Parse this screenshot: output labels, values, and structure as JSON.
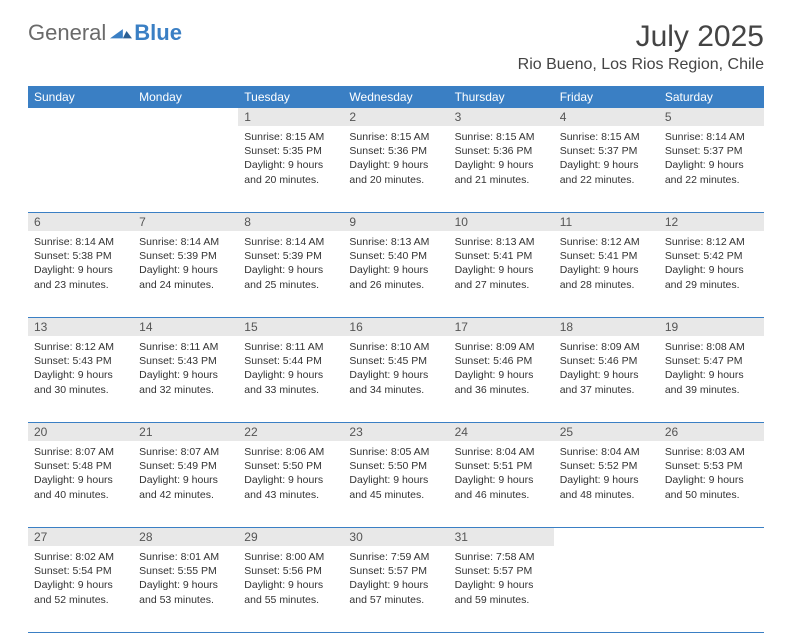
{
  "brand": {
    "part1": "General",
    "part2": "Blue"
  },
  "title": "July 2025",
  "location": "Rio Bueno, Los Rios Region, Chile",
  "colors": {
    "header_bg": "#3a7fc4",
    "daynum_bg": "#e8e8e8",
    "text": "#333333",
    "border": "#3a7fc4"
  },
  "day_names": [
    "Sunday",
    "Monday",
    "Tuesday",
    "Wednesday",
    "Thursday",
    "Friday",
    "Saturday"
  ],
  "weeks": [
    [
      {
        "n": "",
        "sr": "",
        "ss": "",
        "dl": ""
      },
      {
        "n": "",
        "sr": "",
        "ss": "",
        "dl": ""
      },
      {
        "n": "1",
        "sr": "Sunrise: 8:15 AM",
        "ss": "Sunset: 5:35 PM",
        "dl": "Daylight: 9 hours and 20 minutes."
      },
      {
        "n": "2",
        "sr": "Sunrise: 8:15 AM",
        "ss": "Sunset: 5:36 PM",
        "dl": "Daylight: 9 hours and 20 minutes."
      },
      {
        "n": "3",
        "sr": "Sunrise: 8:15 AM",
        "ss": "Sunset: 5:36 PM",
        "dl": "Daylight: 9 hours and 21 minutes."
      },
      {
        "n": "4",
        "sr": "Sunrise: 8:15 AM",
        "ss": "Sunset: 5:37 PM",
        "dl": "Daylight: 9 hours and 22 minutes."
      },
      {
        "n": "5",
        "sr": "Sunrise: 8:14 AM",
        "ss": "Sunset: 5:37 PM",
        "dl": "Daylight: 9 hours and 22 minutes."
      }
    ],
    [
      {
        "n": "6",
        "sr": "Sunrise: 8:14 AM",
        "ss": "Sunset: 5:38 PM",
        "dl": "Daylight: 9 hours and 23 minutes."
      },
      {
        "n": "7",
        "sr": "Sunrise: 8:14 AM",
        "ss": "Sunset: 5:39 PM",
        "dl": "Daylight: 9 hours and 24 minutes."
      },
      {
        "n": "8",
        "sr": "Sunrise: 8:14 AM",
        "ss": "Sunset: 5:39 PM",
        "dl": "Daylight: 9 hours and 25 minutes."
      },
      {
        "n": "9",
        "sr": "Sunrise: 8:13 AM",
        "ss": "Sunset: 5:40 PM",
        "dl": "Daylight: 9 hours and 26 minutes."
      },
      {
        "n": "10",
        "sr": "Sunrise: 8:13 AM",
        "ss": "Sunset: 5:41 PM",
        "dl": "Daylight: 9 hours and 27 minutes."
      },
      {
        "n": "11",
        "sr": "Sunrise: 8:12 AM",
        "ss": "Sunset: 5:41 PM",
        "dl": "Daylight: 9 hours and 28 minutes."
      },
      {
        "n": "12",
        "sr": "Sunrise: 8:12 AM",
        "ss": "Sunset: 5:42 PM",
        "dl": "Daylight: 9 hours and 29 minutes."
      }
    ],
    [
      {
        "n": "13",
        "sr": "Sunrise: 8:12 AM",
        "ss": "Sunset: 5:43 PM",
        "dl": "Daylight: 9 hours and 30 minutes."
      },
      {
        "n": "14",
        "sr": "Sunrise: 8:11 AM",
        "ss": "Sunset: 5:43 PM",
        "dl": "Daylight: 9 hours and 32 minutes."
      },
      {
        "n": "15",
        "sr": "Sunrise: 8:11 AM",
        "ss": "Sunset: 5:44 PM",
        "dl": "Daylight: 9 hours and 33 minutes."
      },
      {
        "n": "16",
        "sr": "Sunrise: 8:10 AM",
        "ss": "Sunset: 5:45 PM",
        "dl": "Daylight: 9 hours and 34 minutes."
      },
      {
        "n": "17",
        "sr": "Sunrise: 8:09 AM",
        "ss": "Sunset: 5:46 PM",
        "dl": "Daylight: 9 hours and 36 minutes."
      },
      {
        "n": "18",
        "sr": "Sunrise: 8:09 AM",
        "ss": "Sunset: 5:46 PM",
        "dl": "Daylight: 9 hours and 37 minutes."
      },
      {
        "n": "19",
        "sr": "Sunrise: 8:08 AM",
        "ss": "Sunset: 5:47 PM",
        "dl": "Daylight: 9 hours and 39 minutes."
      }
    ],
    [
      {
        "n": "20",
        "sr": "Sunrise: 8:07 AM",
        "ss": "Sunset: 5:48 PM",
        "dl": "Daylight: 9 hours and 40 minutes."
      },
      {
        "n": "21",
        "sr": "Sunrise: 8:07 AM",
        "ss": "Sunset: 5:49 PM",
        "dl": "Daylight: 9 hours and 42 minutes."
      },
      {
        "n": "22",
        "sr": "Sunrise: 8:06 AM",
        "ss": "Sunset: 5:50 PM",
        "dl": "Daylight: 9 hours and 43 minutes."
      },
      {
        "n": "23",
        "sr": "Sunrise: 8:05 AM",
        "ss": "Sunset: 5:50 PM",
        "dl": "Daylight: 9 hours and 45 minutes."
      },
      {
        "n": "24",
        "sr": "Sunrise: 8:04 AM",
        "ss": "Sunset: 5:51 PM",
        "dl": "Daylight: 9 hours and 46 minutes."
      },
      {
        "n": "25",
        "sr": "Sunrise: 8:04 AM",
        "ss": "Sunset: 5:52 PM",
        "dl": "Daylight: 9 hours and 48 minutes."
      },
      {
        "n": "26",
        "sr": "Sunrise: 8:03 AM",
        "ss": "Sunset: 5:53 PM",
        "dl": "Daylight: 9 hours and 50 minutes."
      }
    ],
    [
      {
        "n": "27",
        "sr": "Sunrise: 8:02 AM",
        "ss": "Sunset: 5:54 PM",
        "dl": "Daylight: 9 hours and 52 minutes."
      },
      {
        "n": "28",
        "sr": "Sunrise: 8:01 AM",
        "ss": "Sunset: 5:55 PM",
        "dl": "Daylight: 9 hours and 53 minutes."
      },
      {
        "n": "29",
        "sr": "Sunrise: 8:00 AM",
        "ss": "Sunset: 5:56 PM",
        "dl": "Daylight: 9 hours and 55 minutes."
      },
      {
        "n": "30",
        "sr": "Sunrise: 7:59 AM",
        "ss": "Sunset: 5:57 PM",
        "dl": "Daylight: 9 hours and 57 minutes."
      },
      {
        "n": "31",
        "sr": "Sunrise: 7:58 AM",
        "ss": "Sunset: 5:57 PM",
        "dl": "Daylight: 9 hours and 59 minutes."
      },
      {
        "n": "",
        "sr": "",
        "ss": "",
        "dl": ""
      },
      {
        "n": "",
        "sr": "",
        "ss": "",
        "dl": ""
      }
    ]
  ]
}
